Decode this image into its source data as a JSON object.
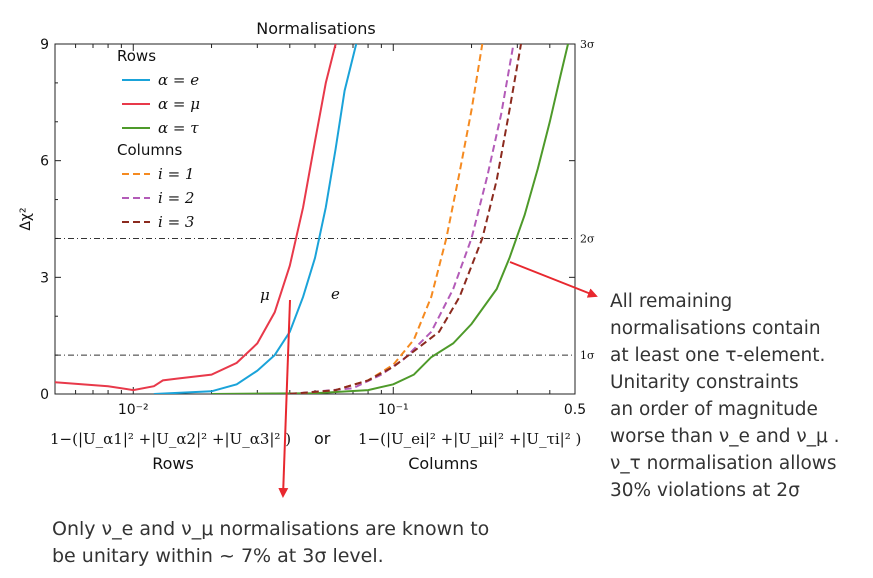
{
  "chart_data": {
    "type": "line",
    "title": "Normalisations",
    "ylabel": "Δχ²",
    "ylim": [
      0,
      9
    ],
    "xlim": [
      0.005,
      0.5
    ],
    "xscale": "log",
    "y_ticks": [
      "0",
      "3",
      "6",
      "9"
    ],
    "x_ticks": [
      "10⁻²",
      "10⁻¹",
      "0.5"
    ],
    "right_ticks": [
      "1σ",
      "2σ",
      "3σ"
    ],
    "sigma_lines": [
      1,
      4
    ],
    "grid": false,
    "legend_position": "top-left",
    "legend_headers": [
      "Rows",
      "Columns"
    ],
    "series": [
      {
        "name": "α = e",
        "group": "Rows",
        "color": "#1aa3d9",
        "dash": "solid",
        "points": [
          [
            0.012,
            0.0
          ],
          [
            0.02,
            0.07
          ],
          [
            0.025,
            0.25
          ],
          [
            0.03,
            0.6
          ],
          [
            0.035,
            1.0
          ],
          [
            0.04,
            1.6
          ],
          [
            0.045,
            2.5
          ],
          [
            0.05,
            3.5
          ],
          [
            0.055,
            4.8
          ],
          [
            0.06,
            6.3
          ],
          [
            0.065,
            7.8
          ],
          [
            0.072,
            9.0
          ]
        ]
      },
      {
        "name": "α = μ",
        "group": "Rows",
        "color": "#e8394a",
        "dash": "solid",
        "points": [
          [
            0.005,
            0.3
          ],
          [
            0.008,
            0.2
          ],
          [
            0.01,
            0.1
          ],
          [
            0.012,
            0.2
          ],
          [
            0.013,
            0.35
          ],
          [
            0.015,
            0.4
          ],
          [
            0.02,
            0.5
          ],
          [
            0.025,
            0.8
          ],
          [
            0.03,
            1.3
          ],
          [
            0.035,
            2.1
          ],
          [
            0.04,
            3.3
          ],
          [
            0.045,
            4.8
          ],
          [
            0.05,
            6.5
          ],
          [
            0.055,
            8.0
          ],
          [
            0.06,
            9.0
          ]
        ]
      },
      {
        "name": "α = τ",
        "group": "Rows",
        "color": "#4e9a2a",
        "dash": "solid",
        "points": [
          [
            0.02,
            0.0
          ],
          [
            0.05,
            0.02
          ],
          [
            0.08,
            0.1
          ],
          [
            0.1,
            0.25
          ],
          [
            0.12,
            0.5
          ],
          [
            0.14,
            0.95
          ],
          [
            0.17,
            1.3
          ],
          [
            0.2,
            1.8
          ],
          [
            0.25,
            2.7
          ],
          [
            0.28,
            3.5
          ],
          [
            0.32,
            4.6
          ],
          [
            0.36,
            5.8
          ],
          [
            0.4,
            7.0
          ],
          [
            0.44,
            8.2
          ],
          [
            0.47,
            9.0
          ]
        ]
      },
      {
        "name": "i = 1",
        "group": "Columns",
        "color": "#f58a20",
        "dash": "dashed",
        "points": [
          [
            0.04,
            0.0
          ],
          [
            0.06,
            0.1
          ],
          [
            0.08,
            0.35
          ],
          [
            0.1,
            0.75
          ],
          [
            0.12,
            1.4
          ],
          [
            0.14,
            2.5
          ],
          [
            0.16,
            4.0
          ],
          [
            0.18,
            5.7
          ],
          [
            0.2,
            7.3
          ],
          [
            0.22,
            9.0
          ]
        ]
      },
      {
        "name": "i = 2",
        "group": "Columns",
        "color": "#b35bb8",
        "dash": "dashed",
        "points": [
          [
            0.04,
            0.0
          ],
          [
            0.07,
            0.15
          ],
          [
            0.09,
            0.5
          ],
          [
            0.11,
            0.9
          ],
          [
            0.14,
            1.6
          ],
          [
            0.17,
            2.7
          ],
          [
            0.2,
            4.0
          ],
          [
            0.23,
            5.6
          ],
          [
            0.26,
            7.2
          ],
          [
            0.29,
            9.0
          ]
        ]
      },
      {
        "name": "i = 3",
        "group": "Columns",
        "color": "#8b2a1e",
        "dash": "dashed",
        "points": [
          [
            0.04,
            0.0
          ],
          [
            0.06,
            0.1
          ],
          [
            0.08,
            0.35
          ],
          [
            0.1,
            0.7
          ],
          [
            0.12,
            1.1
          ],
          [
            0.15,
            1.6
          ],
          [
            0.18,
            2.5
          ],
          [
            0.22,
            4.0
          ],
          [
            0.25,
            5.5
          ],
          [
            0.28,
            7.3
          ],
          [
            0.31,
            9.0
          ]
        ]
      }
    ],
    "curve_labels": [
      "μ",
      "e"
    ],
    "xlabel_rows_formula": "1−(|U_α1|² +|U_α2|² +|U_α3|² )",
    "xlabel_or": "or",
    "xlabel_cols_formula": "1−(|U_ei|² +|U_μi|² +|U_τi|² )",
    "xlabel_rows": "Rows",
    "xlabel_cols": "Columns",
    "arrow_color": "#e8282f"
  },
  "annotations": {
    "right": [
      "All  remaining",
      "normalisations contain",
      "at least one τ-element.",
      "Unitarity constraints",
      "an order of magnitude",
      "worse than  ν_e and ν_μ .",
      "ν_τ normalisation allows",
      "30% violations at 2σ"
    ],
    "bottom": [
      "Only ν_e and ν_μ normalisations are known to",
      "be unitary within ~ 7% at 3σ level."
    ]
  }
}
